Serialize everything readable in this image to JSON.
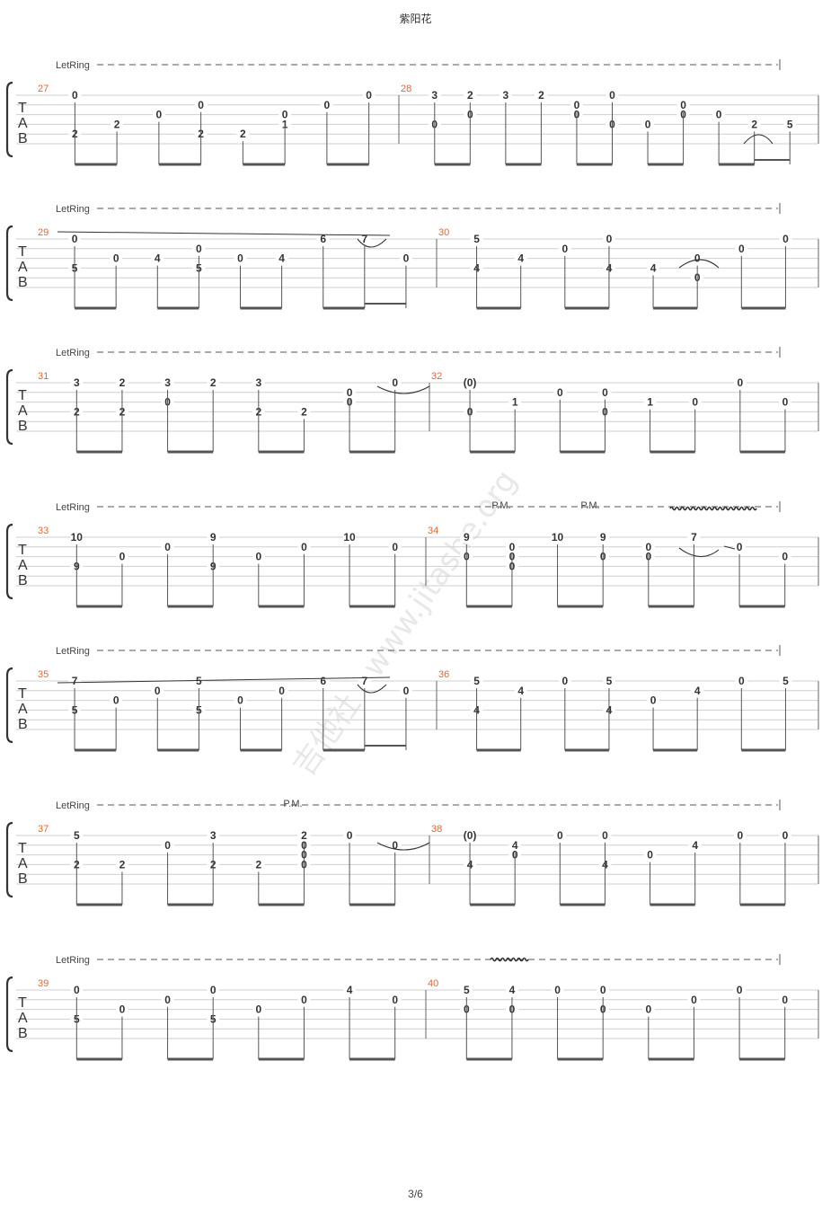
{
  "title": "紫阳花",
  "page_number": "3/6",
  "watermark": "吉他社 · www.jitashe.org",
  "let_ring_label": "LetRing",
  "palm_mute_label": "P.M.",
  "tab_letters": [
    "T",
    "A",
    "B"
  ],
  "colors": {
    "measure_number": "#e8632b",
    "staff_line": "#cfcfcf",
    "text": "#333333"
  },
  "systems": [
    {
      "measures": [
        {
          "number": "27",
          "columns": [
            {
              "s1": "0",
              "s5": "2"
            },
            {
              "s4": "2"
            },
            {
              "s3": "0"
            },
            {
              "s2": "0",
              "s5": "2"
            },
            {
              "s5": "2"
            },
            {
              "s3": "0",
              "s4": "1"
            },
            {
              "s2": "0"
            },
            {
              "s1": "0"
            }
          ]
        },
        {
          "number": "28",
          "columns": [
            {
              "s1": "3",
              "s4": "0"
            },
            {
              "s1": "2",
              "s3": "0"
            },
            {
              "s1": "3"
            },
            {
              "s1": "2"
            },
            {
              "s2": "0",
              "s3": "0"
            },
            {
              "s1": "0",
              "s4": "0"
            },
            {
              "s4": "0"
            },
            {
              "s2": "0",
              "s3": "0"
            },
            {
              "s3": "0"
            },
            {
              "s4": "2"
            },
            {
              "s4": "5"
            }
          ]
        }
      ]
    },
    {
      "measures": [
        {
          "number": "29",
          "columns": [
            {
              "s1": "0",
              "s4": "5"
            },
            {
              "s3": "0"
            },
            {
              "s3": "4"
            },
            {
              "s2": "0",
              "s4": "5"
            },
            {
              "s3": "0"
            },
            {
              "s3": "4"
            },
            {
              "s1": "6"
            },
            {
              "s1": "7"
            },
            {
              "s3": "0"
            }
          ]
        },
        {
          "number": "30",
          "columns": [
            {
              "s1": "5",
              "s4": "4"
            },
            {
              "s3": "4"
            },
            {
              "s2": "0"
            },
            {
              "s1": "0",
              "s4": "4"
            },
            {
              "s4": "4"
            },
            {
              "s3": "0",
              "s5": "0"
            },
            {
              "s2": "0"
            },
            {
              "s1": "0"
            }
          ]
        }
      ]
    },
    {
      "measures": [
        {
          "number": "31",
          "columns": [
            {
              "s1": "3",
              "s4": "2"
            },
            {
              "s1": "2",
              "s4": "2"
            },
            {
              "s1": "3",
              "s3": "0"
            },
            {
              "s1": "2"
            },
            {
              "s1": "3",
              "s4": "2"
            },
            {
              "s4": "2"
            },
            {
              "s2": "0",
              "s3": "0"
            },
            {
              "s1": "0"
            }
          ]
        },
        {
          "number": "32",
          "columns": [
            {
              "s1": "(0)",
              "s4": "0"
            },
            {
              "s3": "1"
            },
            {
              "s2": "0"
            },
            {
              "s2": "0",
              "s4": "0"
            },
            {
              "s3": "1"
            },
            {
              "s3": "0"
            },
            {
              "s1": "0"
            },
            {
              "s3": "0"
            }
          ]
        }
      ]
    },
    {
      "measures": [
        {
          "number": "33",
          "columns": [
            {
              "s1": "10",
              "s4": "9"
            },
            {
              "s3": "0"
            },
            {
              "s2": "0"
            },
            {
              "s1": "9",
              "s4": "9"
            },
            {
              "s3": "0"
            },
            {
              "s2": "0"
            },
            {
              "s1": "10"
            },
            {
              "s2": "0"
            }
          ]
        },
        {
          "number": "34",
          "columns": [
            {
              "s1": "9",
              "s3": "0"
            },
            {
              "s2": "0",
              "s3": "0",
              "s4": "0"
            },
            {
              "s1": "10"
            },
            {
              "s1": "9",
              "s3": "0"
            },
            {
              "s2": "0",
              "s3": "0"
            },
            {
              "s1": "7"
            },
            {
              "s2": "0"
            },
            {
              "s3": "0"
            }
          ]
        }
      ]
    },
    {
      "measures": [
        {
          "number": "35",
          "columns": [
            {
              "s1": "7",
              "s4": "5"
            },
            {
              "s3": "0"
            },
            {
              "s2": "0"
            },
            {
              "s1": "5",
              "s4": "5"
            },
            {
              "s3": "0"
            },
            {
              "s2": "0"
            },
            {
              "s1": "6"
            },
            {
              "s1": "7"
            },
            {
              "s2": "0"
            }
          ]
        },
        {
          "number": "36",
          "columns": [
            {
              "s1": "5",
              "s4": "4"
            },
            {
              "s2": "4"
            },
            {
              "s1": "0"
            },
            {
              "s1": "5",
              "s4": "4"
            },
            {
              "s3": "0"
            },
            {
              "s2": "4"
            },
            {
              "s1": "0"
            },
            {
              "s1": "5"
            }
          ]
        }
      ]
    },
    {
      "measures": [
        {
          "number": "37",
          "columns": [
            {
              "s1": "5",
              "s4": "2"
            },
            {
              "s4": "2"
            },
            {
              "s2": "0"
            },
            {
              "s1": "3",
              "s4": "2"
            },
            {
              "s4": "2"
            },
            {
              "s1": "2",
              "s2": "0",
              "s3": "0",
              "s4": "0"
            },
            {
              "s1": "0"
            },
            {
              "s2": "0"
            }
          ]
        },
        {
          "number": "38",
          "columns": [
            {
              "s1": "(0)",
              "s4": "4"
            },
            {
              "s2": "4",
              "s3": "0"
            },
            {
              "s1": "0"
            },
            {
              "s1": "0",
              "s4": "4"
            },
            {
              "s3": "0"
            },
            {
              "s2": "4"
            },
            {
              "s1": "0"
            },
            {
              "s1": "0"
            }
          ]
        }
      ]
    },
    {
      "measures": [
        {
          "number": "39",
          "columns": [
            {
              "s1": "0",
              "s4": "5"
            },
            {
              "s3": "0"
            },
            {
              "s2": "0"
            },
            {
              "s1": "0",
              "s4": "5"
            },
            {
              "s3": "0"
            },
            {
              "s2": "0"
            },
            {
              "s1": "4"
            },
            {
              "s2": "0"
            }
          ]
        },
        {
          "number": "40",
          "columns": [
            {
              "s1": "5",
              "s3": "0"
            },
            {
              "s1": "4",
              "s3": "0"
            },
            {
              "s1": "0"
            },
            {
              "s1": "0",
              "s3": "0"
            },
            {
              "s3": "0"
            },
            {
              "s2": "0"
            },
            {
              "s1": "0"
            },
            {
              "s2": "0"
            }
          ]
        }
      ]
    }
  ]
}
